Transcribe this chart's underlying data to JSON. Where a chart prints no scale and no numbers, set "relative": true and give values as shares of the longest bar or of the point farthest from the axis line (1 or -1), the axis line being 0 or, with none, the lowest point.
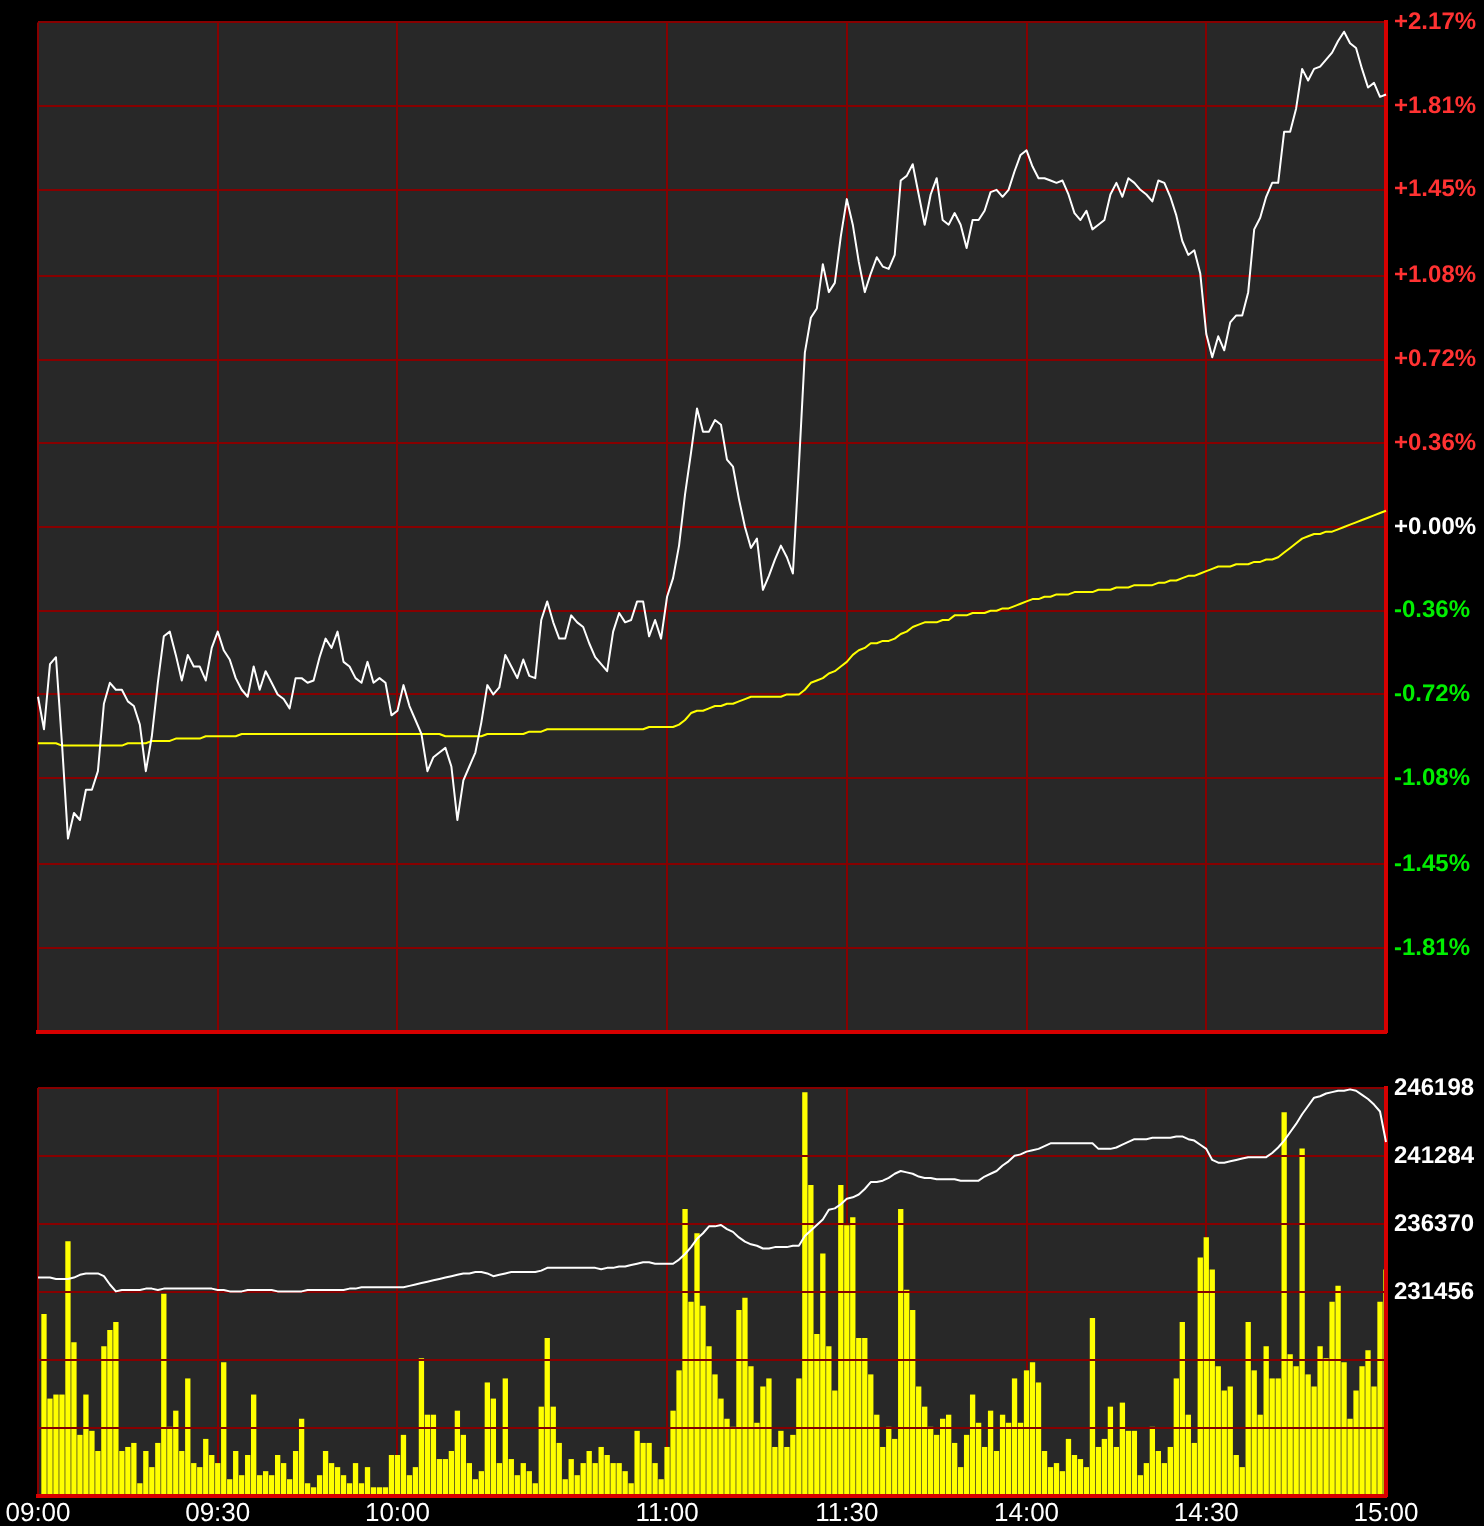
{
  "chart_data": [
    {
      "type": "line",
      "categories": [
        null,
        null,
        null,
        null,
        null,
        null,
        null,
        null,
        null,
        null,
        null,
        null,
        null,
        null,
        null,
        null,
        null,
        null,
        null,
        null,
        null,
        null,
        null,
        null,
        null,
        null,
        null,
        null,
        null,
        null,
        null,
        null,
        null,
        null,
        null,
        null,
        null,
        null,
        null,
        null,
        null,
        null,
        null,
        null,
        null,
        null,
        null,
        null,
        null,
        null,
        null,
        null,
        null,
        null,
        null,
        null,
        null,
        null,
        null,
        null,
        null,
        null,
        null,
        null,
        null,
        null,
        null,
        null,
        null,
        null,
        null,
        null,
        null,
        null,
        null,
        null,
        null,
        null,
        null,
        null,
        null,
        null,
        null,
        null,
        null,
        null,
        null,
        null,
        null,
        null,
        null,
        null,
        null,
        null,
        null,
        null,
        null,
        null,
        null,
        null,
        null,
        null,
        null,
        null,
        null,
        null,
        null,
        null,
        null,
        null,
        null,
        null,
        null,
        null,
        null,
        null,
        null,
        null,
        null,
        null,
        null,
        null,
        null,
        null,
        null,
        null,
        null,
        null,
        null,
        null,
        null,
        null,
        null,
        null,
        null,
        null,
        null,
        null,
        null,
        null,
        null,
        null,
        null,
        null,
        null,
        null,
        null,
        null,
        null,
        null,
        null,
        null,
        null,
        null,
        null,
        null,
        null,
        null,
        null,
        null,
        null,
        null,
        null,
        null,
        null,
        null,
        null,
        null,
        null,
        null,
        null,
        null,
        null,
        null,
        null,
        null,
        null,
        null,
        null,
        null,
        null,
        null,
        null,
        null,
        null,
        null,
        null,
        null,
        null,
        null,
        null,
        null,
        null,
        null,
        null,
        null,
        null,
        null,
        null,
        null,
        null,
        null,
        null,
        null,
        null,
        null,
        null,
        null,
        null,
        null,
        null,
        null,
        null,
        null,
        null,
        null,
        null,
        null,
        null,
        null,
        null,
        null,
        null,
        null,
        null,
        null
      ],
      "ylim": [
        -2.17,
        2.17
      ],
      "yticks": [
        {
          "value": 2.17,
          "label": "+2.17%"
        },
        {
          "value": 1.81,
          "label": "+1.81%"
        },
        {
          "value": 1.45,
          "label": "+1.45%"
        },
        {
          "value": 1.08,
          "label": "+1.08%"
        },
        {
          "value": 0.72,
          "label": "+0.72%"
        },
        {
          "value": 0.36,
          "label": "+0.36%"
        },
        {
          "value": 0,
          "label": "+0.00%"
        },
        {
          "value": -0.36,
          "label": "-0.36%"
        },
        {
          "value": -0.72,
          "label": "-0.72%"
        },
        {
          "value": -1.08,
          "label": "-1.08%"
        },
        {
          "value": -1.45,
          "label": "-1.45%"
        },
        {
          "value": -1.81,
          "label": "-1.81%"
        }
      ],
      "grid": true,
      "tick_labels": "y",
      "series": [
        {
          "color": "#ffffff",
          "values": [
            -0.73,
            -0.87,
            -0.59,
            -0.56,
            -0.93,
            -1.34,
            -1.23,
            -1.26,
            -1.13,
            -1.13,
            -1.05,
            -0.76,
            -0.67,
            -0.7,
            -0.7,
            -0.75,
            -0.77,
            -0.85,
            -1.05,
            -0.9,
            -0.67,
            -0.47,
            -0.45,
            -0.55,
            -0.66,
            -0.55,
            -0.6,
            -0.6,
            -0.66,
            -0.52,
            -0.45,
            -0.53,
            -0.57,
            -0.65,
            -0.7,
            -0.73,
            -0.6,
            -0.7,
            -0.62,
            -0.67,
            -0.72,
            -0.74,
            -0.78,
            -0.65,
            -0.65,
            -0.67,
            -0.66,
            -0.56,
            -0.48,
            -0.52,
            -0.45,
            -0.58,
            -0.6,
            -0.65,
            -0.67,
            -0.58,
            -0.67,
            -0.65,
            -0.67,
            -0.81,
            -0.79,
            -0.68,
            -0.77,
            -0.83,
            -0.89,
            -1.05,
            -0.99,
            -0.97,
            -0.95,
            -1.03,
            -1.26,
            -1.09,
            -1.03,
            -0.97,
            -0.84,
            -0.68,
            -0.72,
            -0.69,
            -0.55,
            -0.6,
            -0.65,
            -0.57,
            -0.64,
            -0.65,
            -0.4,
            -0.32,
            -0.41,
            -0.48,
            -0.48,
            -0.38,
            -0.41,
            -0.43,
            -0.5,
            -0.56,
            -0.59,
            -0.62,
            -0.45,
            -0.37,
            -0.41,
            -0.4,
            -0.32,
            -0.32,
            -0.47,
            -0.4,
            -0.48,
            -0.3,
            -0.22,
            -0.08,
            0.14,
            0.32,
            0.51,
            0.41,
            0.41,
            0.46,
            0.44,
            0.29,
            0.26,
            0.12,
            0.0,
            -0.09,
            -0.05,
            -0.27,
            -0.21,
            -0.14,
            -0.08,
            -0.13,
            -0.2,
            0.26,
            0.75,
            0.9,
            0.94,
            1.13,
            1.01,
            1.05,
            1.25,
            1.41,
            1.3,
            1.14,
            1.01,
            1.09,
            1.16,
            1.12,
            1.11,
            1.17,
            1.49,
            1.51,
            1.56,
            1.43,
            1.3,
            1.43,
            1.5,
            1.32,
            1.3,
            1.35,
            1.3,
            1.2,
            1.32,
            1.32,
            1.36,
            1.44,
            1.45,
            1.42,
            1.45,
            1.53,
            1.6,
            1.62,
            1.55,
            1.5,
            1.5,
            1.49,
            1.48,
            1.49,
            1.43,
            1.35,
            1.32,
            1.36,
            1.28,
            1.3,
            1.32,
            1.43,
            1.48,
            1.42,
            1.5,
            1.48,
            1.45,
            1.43,
            1.4,
            1.49,
            1.48,
            1.42,
            1.34,
            1.23,
            1.17,
            1.19,
            1.09,
            0.83,
            0.73,
            0.82,
            0.76,
            0.88,
            0.91,
            0.91,
            1.01,
            1.28,
            1.33,
            1.42,
            1.48,
            1.48,
            1.7,
            1.7,
            1.8,
            1.97,
            1.92,
            1.97,
            1.98,
            2.01,
            2.04,
            2.09,
            2.13,
            2.08,
            2.06,
            1.97,
            1.89,
            1.91,
            1.85,
            1.86
          ]
        },
        {
          "color": "#ffff00",
          "values": [
            -0.93,
            -0.93,
            -0.93,
            -0.93,
            -0.94,
            -0.94,
            -0.94,
            -0.94,
            -0.94,
            -0.94,
            -0.94,
            -0.94,
            -0.94,
            -0.94,
            -0.94,
            -0.93,
            -0.93,
            -0.93,
            -0.93,
            -0.92,
            -0.92,
            -0.92,
            -0.92,
            -0.91,
            -0.91,
            -0.91,
            -0.91,
            -0.91,
            -0.9,
            -0.9,
            -0.9,
            -0.9,
            -0.9,
            -0.9,
            -0.89,
            -0.89,
            -0.89,
            -0.89,
            -0.89,
            -0.89,
            -0.89,
            -0.89,
            -0.89,
            -0.89,
            -0.89,
            -0.89,
            -0.89,
            -0.89,
            -0.89,
            -0.89,
            -0.89,
            -0.89,
            -0.89,
            -0.89,
            -0.89,
            -0.89,
            -0.89,
            -0.89,
            -0.89,
            -0.89,
            -0.89,
            -0.89,
            -0.89,
            -0.89,
            -0.89,
            -0.89,
            -0.89,
            -0.89,
            -0.9,
            -0.9,
            -0.9,
            -0.9,
            -0.9,
            -0.9,
            -0.9,
            -0.89,
            -0.89,
            -0.89,
            -0.89,
            -0.89,
            -0.89,
            -0.89,
            -0.88,
            -0.88,
            -0.88,
            -0.87,
            -0.87,
            -0.87,
            -0.87,
            -0.87,
            -0.87,
            -0.87,
            -0.87,
            -0.87,
            -0.87,
            -0.87,
            -0.87,
            -0.87,
            -0.87,
            -0.87,
            -0.87,
            -0.87,
            -0.86,
            -0.86,
            -0.86,
            -0.86,
            -0.86,
            -0.85,
            -0.83,
            -0.8,
            -0.79,
            -0.79,
            -0.78,
            -0.77,
            -0.77,
            -0.76,
            -0.76,
            -0.75,
            -0.74,
            -0.73,
            -0.73,
            -0.73,
            -0.73,
            -0.73,
            -0.73,
            -0.72,
            -0.72,
            -0.72,
            -0.7,
            -0.67,
            -0.66,
            -0.65,
            -0.63,
            -0.62,
            -0.6,
            -0.58,
            -0.55,
            -0.53,
            -0.52,
            -0.5,
            -0.5,
            -0.49,
            -0.49,
            -0.48,
            -0.46,
            -0.45,
            -0.43,
            -0.42,
            -0.41,
            -0.41,
            -0.41,
            -0.4,
            -0.4,
            -0.38,
            -0.38,
            -0.38,
            -0.37,
            -0.37,
            -0.37,
            -0.36,
            -0.36,
            -0.35,
            -0.35,
            -0.34,
            -0.33,
            -0.32,
            -0.31,
            -0.31,
            -0.3,
            -0.3,
            -0.29,
            -0.29,
            -0.29,
            -0.28,
            -0.28,
            -0.28,
            -0.28,
            -0.27,
            -0.27,
            -0.27,
            -0.26,
            -0.26,
            -0.26,
            -0.25,
            -0.25,
            -0.25,
            -0.25,
            -0.24,
            -0.24,
            -0.23,
            -0.23,
            -0.22,
            -0.21,
            -0.21,
            -0.2,
            -0.19,
            -0.18,
            -0.17,
            -0.17,
            -0.17,
            -0.16,
            -0.16,
            -0.16,
            -0.15,
            -0.15,
            -0.14,
            -0.14,
            -0.13,
            -0.11,
            -0.09,
            -0.07,
            -0.05,
            -0.04,
            -0.03,
            -0.03,
            -0.02,
            -0.02,
            -0.01,
            0.0,
            0.01,
            0.02,
            0.03,
            0.04,
            0.05,
            0.06,
            0.07
          ]
        }
      ]
    },
    {
      "type": "bar",
      "relative": true,
      "categories": [
        "09:00",
        null,
        null,
        null,
        null,
        null,
        null,
        null,
        null,
        null,
        null,
        null,
        null,
        null,
        null,
        null,
        null,
        null,
        null,
        null,
        null,
        null,
        null,
        null,
        null,
        null,
        null,
        null,
        null,
        null,
        "09:30",
        null,
        null,
        null,
        null,
        null,
        null,
        null,
        null,
        null,
        null,
        null,
        null,
        null,
        null,
        null,
        null,
        null,
        null,
        null,
        null,
        null,
        null,
        null,
        null,
        null,
        null,
        null,
        null,
        null,
        "10:00",
        null,
        null,
        null,
        null,
        null,
        null,
        null,
        null,
        null,
        null,
        null,
        null,
        null,
        null,
        null,
        null,
        null,
        null,
        null,
        null,
        null,
        null,
        null,
        null,
        null,
        null,
        null,
        null,
        null,
        null,
        null,
        null,
        null,
        null,
        null,
        null,
        null,
        null,
        null,
        null,
        null,
        null,
        null,
        null,
        "11:00",
        null,
        null,
        null,
        null,
        null,
        null,
        null,
        null,
        null,
        null,
        null,
        null,
        null,
        null,
        null,
        null,
        null,
        null,
        null,
        null,
        null,
        null,
        null,
        null,
        null,
        null,
        null,
        null,
        null,
        "11:30",
        null,
        null,
        null,
        null,
        null,
        null,
        null,
        null,
        null,
        null,
        null,
        null,
        null,
        null,
        null,
        null,
        null,
        null,
        null,
        null,
        null,
        null,
        null,
        null,
        null,
        null,
        null,
        null,
        null,
        "14:00",
        null,
        null,
        null,
        null,
        null,
        null,
        null,
        null,
        null,
        null,
        null,
        null,
        null,
        null,
        null,
        null,
        null,
        null,
        null,
        null,
        null,
        null,
        null,
        null,
        null,
        null,
        null,
        null,
        null,
        "14:30",
        null,
        null,
        null,
        null,
        null,
        null,
        null,
        null,
        null,
        null,
        null,
        null,
        null,
        null,
        null,
        null,
        null,
        null,
        null,
        null,
        null,
        null,
        null,
        null,
        null,
        null,
        null,
        null,
        null,
        "15:00"
      ],
      "grid": "x",
      "series": [
        {
          "color": "#ffff00",
          "values": [
            null,
            0.45,
            0.24,
            0.25,
            0.25,
            0.63,
            0.38,
            0.15,
            0.25,
            0.16,
            0.11,
            0.37,
            0.41,
            0.43,
            0.11,
            0.12,
            0.13,
            0.03,
            0.11,
            0.07,
            0.13,
            0.5,
            0.17,
            0.21,
            0.11,
            0.29,
            0.08,
            0.07,
            0.14,
            0.1,
            0.08,
            0.33,
            0.04,
            0.11,
            0.05,
            0.1,
            0.25,
            0.05,
            0.06,
            0.05,
            0.1,
            0.08,
            0.04,
            0.11,
            0.19,
            0.03,
            0.02,
            0.05,
            0.11,
            0.08,
            0.07,
            0.05,
            0.03,
            0.08,
            0.03,
            0.07,
            0.02,
            0.02,
            0.02,
            0.1,
            0.1,
            0.15,
            0.05,
            0.07,
            0.34,
            0.2,
            0.2,
            0.09,
            0.09,
            0.11,
            0.21,
            0.15,
            0.08,
            0.04,
            0.06,
            0.28,
            0.24,
            0.08,
            0.29,
            0.09,
            0.05,
            0.08,
            0.06,
            0.03,
            0.22,
            0.39,
            0.22,
            0.13,
            0.04,
            0.09,
            0.05,
            0.08,
            0.11,
            0.08,
            0.12,
            0.1,
            0.08,
            0.08,
            0.06,
            0.03,
            0.16,
            0.13,
            0.13,
            0.08,
            0.04,
            0.12,
            0.21,
            0.31,
            0.71,
            0.48,
            0.65,
            0.47,
            0.37,
            0.3,
            0.24,
            0.19,
            0.17,
            0.46,
            0.49,
            0.32,
            0.18,
            0.27,
            0.29,
            0.12,
            0.16,
            0.12,
            0.15,
            0.29,
            1,
            0.77,
            0.4,
            0.6,
            0.37,
            0.26,
            0.77,
            0.67,
            0.69,
            0.39,
            0.39,
            0.3,
            0.2,
            0.12,
            0.17,
            0.14,
            0.71,
            0.51,
            0.46,
            0.27,
            0.22,
            0.17,
            0.15,
            0.19,
            0.2,
            0.13,
            0.07,
            0.15,
            0.25,
            0.18,
            0.12,
            0.21,
            0.11,
            0.2,
            0.18,
            0.29,
            0.18,
            0.31,
            0.33,
            0.28,
            0.11,
            0.07,
            0.08,
            0.06,
            0.14,
            0.1,
            0.09,
            0.07,
            0.44,
            0.12,
            0.14,
            0.22,
            0.12,
            0.23,
            0.16,
            0.16,
            0.05,
            0.08,
            0.17,
            0.11,
            0.08,
            0.12,
            0.29,
            0.43,
            0.2,
            0.13,
            0.59,
            0.64,
            0.56,
            0.32,
            0.26,
            0.27,
            0.1,
            0.07,
            0.43,
            0.31,
            0.2,
            0.37,
            0.29,
            0.29,
            0.95,
            0.35,
            0.32,
            0.86,
            0.3,
            0.27,
            0.37,
            0.34,
            0.48,
            0.52,
            0.33,
            0.19,
            0.26,
            0.32,
            0.36,
            0.27,
            0.48,
            0.56
          ]
        }
      ]
    },
    {
      "type": "line",
      "categories": [
        null,
        null,
        null,
        null,
        null,
        null,
        null,
        null,
        null,
        null,
        null,
        null,
        null,
        null,
        null,
        null,
        null,
        null,
        null,
        null,
        null,
        null,
        null,
        null,
        null,
        null,
        null,
        null,
        null,
        null,
        null,
        null,
        null,
        null,
        null,
        null,
        null,
        null,
        null,
        null,
        null,
        null,
        null,
        null,
        null,
        null,
        null,
        null,
        null,
        null,
        null,
        null,
        null,
        null,
        null,
        null,
        null,
        null,
        null,
        null,
        null,
        null,
        null,
        null,
        null,
        null,
        null,
        null,
        null,
        null,
        null,
        null,
        null,
        null,
        null,
        null,
        null,
        null,
        null,
        null,
        null,
        null,
        null,
        null,
        null,
        null,
        null,
        null,
        null,
        null,
        null,
        null,
        null,
        null,
        null,
        null,
        null,
        null,
        null,
        null,
        null,
        null,
        null,
        null,
        null,
        null,
        null,
        null,
        null,
        null,
        null,
        null,
        null,
        null,
        null,
        null,
        null,
        null,
        null,
        null,
        null,
        null,
        null,
        null,
        null,
        null,
        null,
        null,
        null,
        null,
        null,
        null,
        null,
        null,
        null,
        null,
        null,
        null,
        null,
        null,
        null,
        null,
        null,
        null,
        null,
        null,
        null,
        null,
        null,
        null,
        null,
        null,
        null,
        null,
        null,
        null,
        null,
        null,
        null,
        null,
        null,
        null,
        null,
        null,
        null,
        null,
        null,
        null,
        null,
        null,
        null,
        null,
        null,
        null,
        null,
        null,
        null,
        null,
        null,
        null,
        null,
        null,
        null,
        null,
        null,
        null,
        null,
        null,
        null,
        null,
        null,
        null,
        null,
        null,
        null,
        null,
        null,
        null,
        null,
        null,
        null,
        null,
        null,
        null,
        null,
        null,
        null,
        null,
        null,
        null,
        null,
        null,
        null,
        null,
        null,
        null,
        null,
        null,
        null,
        null,
        null,
        null,
        null,
        null,
        null,
        null
      ],
      "ylim": [
        216714,
        246198
      ],
      "yticks": [
        246198,
        241284,
        236370,
        231456,
        {
          "value": 226542,
          "label": null
        },
        {
          "value": 221628,
          "label": null
        }
      ],
      "grid": "y",
      "tick_labels": "y",
      "series": [
        {
          "color": "#ffffff",
          "values": [
            232500,
            232500,
            232500,
            232400,
            232400,
            232400,
            232500,
            232700,
            232800,
            232800,
            232800,
            232600,
            232000,
            231500,
            231600,
            231600,
            231600,
            231600,
            231700,
            231700,
            231600,
            231700,
            231700,
            231700,
            231700,
            231700,
            231700,
            231700,
            231700,
            231700,
            231600,
            231600,
            231500,
            231500,
            231500,
            231600,
            231600,
            231600,
            231600,
            231600,
            231500,
            231500,
            231500,
            231500,
            231500,
            231600,
            231600,
            231600,
            231600,
            231600,
            231600,
            231600,
            231700,
            231700,
            231800,
            231800,
            231800,
            231800,
            231800,
            231800,
            231800,
            231800,
            231900,
            232000,
            232100,
            232200,
            232300,
            232400,
            232500,
            232600,
            232700,
            232800,
            232800,
            232900,
            232900,
            232800,
            232600,
            232700,
            232800,
            232900,
            232900,
            232900,
            232900,
            232900,
            233000,
            233200,
            233200,
            233200,
            233200,
            233200,
            233200,
            233200,
            233200,
            233200,
            233100,
            233200,
            233200,
            233300,
            233300,
            233400,
            233500,
            233600,
            233600,
            233500,
            233500,
            233500,
            233500,
            233800,
            234200,
            234700,
            235300,
            235700,
            236200,
            236200,
            236300,
            236000,
            235800,
            235400,
            235100,
            234900,
            234800,
            234600,
            234600,
            234700,
            234700,
            234700,
            234800,
            234800,
            235500,
            235900,
            236300,
            236700,
            237400,
            237500,
            237800,
            238200,
            238300,
            238500,
            238900,
            239400,
            239400,
            239500,
            239700,
            240000,
            240200,
            240100,
            240000,
            239800,
            239700,
            239700,
            239600,
            239600,
            239600,
            239600,
            239500,
            239500,
            239500,
            239500,
            239800,
            240000,
            240200,
            240600,
            240900,
            241300,
            241400,
            241600,
            241700,
            241800,
            242000,
            242200,
            242200,
            242200,
            242200,
            242200,
            242200,
            242200,
            242200,
            241800,
            241800,
            241800,
            241900,
            242100,
            242300,
            242500,
            242500,
            242500,
            242600,
            242600,
            242600,
            242600,
            242700,
            242700,
            242500,
            242400,
            242100,
            241800,
            241000,
            240800,
            240800,
            240900,
            241000,
            241100,
            241200,
            241200,
            241200,
            241200,
            241500,
            241900,
            242400,
            243000,
            243600,
            244300,
            244900,
            245500,
            245600,
            245800,
            245900,
            246000,
            246000,
            246100,
            246000,
            245700,
            245400,
            245000,
            244500,
            242300
          ]
        }
      ]
    }
  ]
}
